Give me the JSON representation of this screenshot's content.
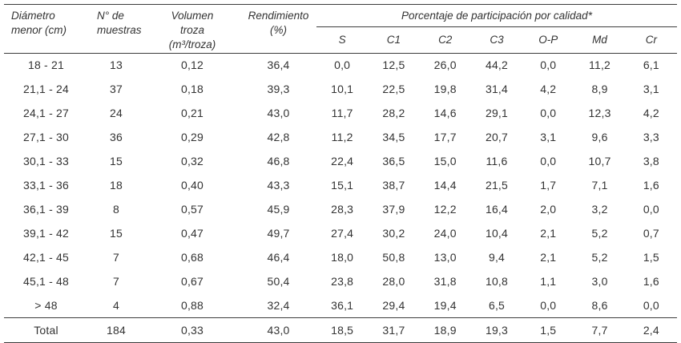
{
  "colors": {
    "text": "#333333",
    "rule": "#3c3c3c",
    "background": "#ffffff"
  },
  "table": {
    "headers": {
      "diametro": "Diámetro\nmenor (cm)",
      "muestras": "N° de\nmuestras",
      "volumen": "Volumen\ntroza\n(m³/troza)",
      "rendimiento": "Rendimiento\n(%)"
    },
    "group_header": "Porcentaje de participación por calidad*",
    "quality_headers": [
      "S",
      "C1",
      "C2",
      "C3",
      "O-P",
      "Md",
      "Cr"
    ],
    "rows": [
      [
        "18 - 21",
        "13",
        "0,12",
        "36,4",
        "0,0",
        "12,5",
        "26,0",
        "44,2",
        "0,0",
        "11,2",
        "6,1"
      ],
      [
        "21,1 - 24",
        "37",
        "0,18",
        "39,3",
        "10,1",
        "22,5",
        "19,8",
        "31,4",
        "4,2",
        "8,9",
        "3,1"
      ],
      [
        "24,1 - 27",
        "24",
        "0,21",
        "43,0",
        "11,7",
        "28,2",
        "14,6",
        "29,1",
        "0,0",
        "12,3",
        "4,2"
      ],
      [
        "27,1 - 30",
        "36",
        "0,29",
        "42,8",
        "11,2",
        "34,5",
        "17,7",
        "20,7",
        "3,1",
        "9,6",
        "3,3"
      ],
      [
        "30,1 - 33",
        "15",
        "0,32",
        "46,8",
        "22,4",
        "36,5",
        "15,0",
        "11,6",
        "0,0",
        "10,7",
        "3,8"
      ],
      [
        "33,1 - 36",
        "18",
        "0,40",
        "43,3",
        "15,1",
        "38,7",
        "14,4",
        "21,5",
        "1,7",
        "7,1",
        "1,6"
      ],
      [
        "36,1 - 39",
        "8",
        "0,57",
        "45,9",
        "28,3",
        "37,9",
        "12,2",
        "16,4",
        "2,0",
        "3,2",
        "0,0"
      ],
      [
        "39,1 - 42",
        "15",
        "0,47",
        "49,7",
        "27,4",
        "30,2",
        "24,0",
        "10,4",
        "2,1",
        "5,2",
        "0,7"
      ],
      [
        "42,1 - 45",
        "7",
        "0,68",
        "46,4",
        "18,0",
        "50,8",
        "13,0",
        "9,4",
        "2,1",
        "5,2",
        "1,5"
      ],
      [
        "45,1 - 48",
        "7",
        "0,67",
        "50,4",
        "23,8",
        "28,0",
        "31,8",
        "10,8",
        "1,1",
        "3,0",
        "1,6"
      ],
      [
        "> 48",
        "4",
        "0,88",
        "32,4",
        "36,1",
        "29,4",
        "19,4",
        "6,5",
        "0,0",
        "8,6",
        "0,0"
      ]
    ],
    "total_row": [
      "Total",
      "184",
      "0,33",
      "43,0",
      "18,5",
      "31,7",
      "18,9",
      "19,3",
      "1,5",
      "7,7",
      "2,4"
    ]
  }
}
